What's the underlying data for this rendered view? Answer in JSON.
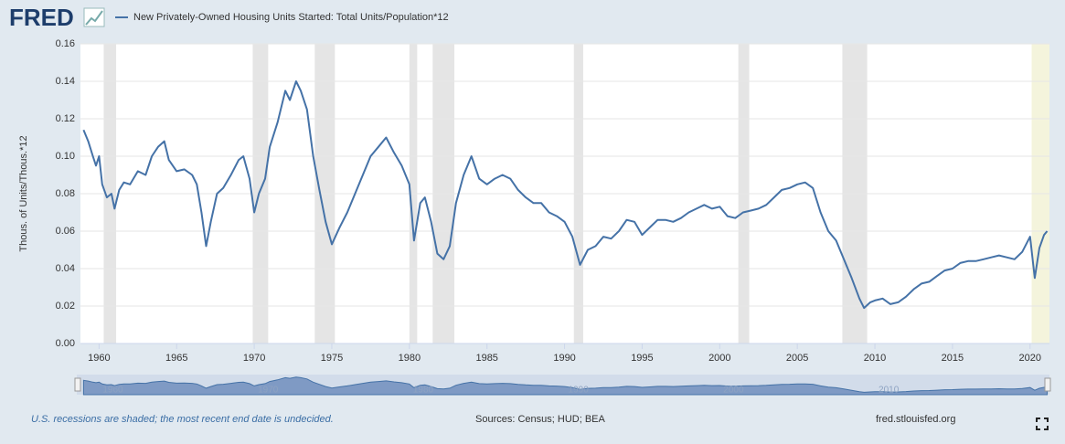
{
  "chart_data": {
    "type": "line",
    "logo": "FRED",
    "ylabel": "Thous. of Units/Thous.*12",
    "footnote": "U.S. recessions are shaded; the most recent end date is undecided.",
    "sources": "Sources: Census; HUD; BEA",
    "site": "fred.stlouisfed.org",
    "xlim": [
      1958.8,
      2021.25
    ],
    "ylim": [
      0,
      0.16
    ],
    "xticks": [
      1960,
      1965,
      1970,
      1975,
      1980,
      1985,
      1990,
      1995,
      2000,
      2005,
      2010,
      2015,
      2020
    ],
    "yticks": [
      {
        "value": 0,
        "label": "0.00"
      },
      0.02,
      0.04,
      0.06,
      0.08,
      {
        "value": 0.1,
        "label": "0.10"
      },
      0.12,
      0.14,
      0.16
    ],
    "navigator_ticks": [
      1960,
      1970,
      1980,
      1990,
      2000,
      2010
    ],
    "grid": true,
    "recession_color": "#e5e5e5",
    "recessions": [
      [
        1960.3,
        1961.1
      ],
      [
        1969.9,
        1970.9
      ],
      [
        1973.9,
        1975.2
      ],
      [
        1980.0,
        1980.5
      ],
      [
        1981.5,
        1982.9
      ],
      [
        1990.6,
        1991.2
      ],
      [
        2001.2,
        2001.9
      ],
      [
        2007.9,
        2009.5
      ]
    ],
    "open_recession_color": "#f4f4dc",
    "open_recession_start": 2020.1,
    "x": [
      1959.0,
      1959.3,
      1959.6,
      1959.8,
      1960.0,
      1960.2,
      1960.5,
      1960.8,
      1961.0,
      1961.3,
      1961.6,
      1962.0,
      1962.5,
      1963.0,
      1963.4,
      1963.8,
      1964.2,
      1964.5,
      1965.0,
      1965.5,
      1966.0,
      1966.3,
      1966.6,
      1966.9,
      1967.2,
      1967.6,
      1968.0,
      1968.5,
      1969.0,
      1969.3,
      1969.7,
      1970.0,
      1970.3,
      1970.7,
      1971.0,
      1971.5,
      1972.0,
      1972.3,
      1972.7,
      1973.0,
      1973.4,
      1973.8,
      1974.2,
      1974.6,
      1975.0,
      1975.5,
      1976.0,
      1976.5,
      1977.0,
      1977.5,
      1978.0,
      1978.5,
      1979.0,
      1979.5,
      1980.0,
      1980.3,
      1980.7,
      1981.0,
      1981.4,
      1981.8,
      1982.2,
      1982.6,
      1983.0,
      1983.5,
      1984.0,
      1984.5,
      1985.0,
      1985.5,
      1986.0,
      1986.5,
      1987.0,
      1987.5,
      1988.0,
      1988.5,
      1989.0,
      1989.5,
      1990.0,
      1990.5,
      1991.0,
      1991.5,
      1992.0,
      1992.5,
      1993.0,
      1993.5,
      1994.0,
      1994.5,
      1995.0,
      1995.5,
      1996.0,
      1996.5,
      1997.0,
      1997.5,
      1998.0,
      1998.5,
      1999.0,
      1999.5,
      2000.0,
      2000.5,
      2001.0,
      2001.5,
      2002.0,
      2002.5,
      2003.0,
      2003.5,
      2004.0,
      2004.5,
      2005.0,
      2005.5,
      2006.0,
      2006.5,
      2007.0,
      2007.5,
      2008.0,
      2008.5,
      2009.0,
      2009.3,
      2009.7,
      2010.0,
      2010.5,
      2011.0,
      2011.5,
      2012.0,
      2012.5,
      2013.0,
      2013.5,
      2014.0,
      2014.5,
      2015.0,
      2015.5,
      2016.0,
      2016.5,
      2017.0,
      2017.5,
      2018.0,
      2018.5,
      2019.0,
      2019.5,
      2020.0,
      2020.3,
      2020.6,
      2020.9,
      2021.1
    ],
    "series": [
      {
        "name": "New Privately-Owned Housing Units Started: Total Units/Population*12",
        "color": "#4572a7",
        "values": [
          0.114,
          0.108,
          0.1,
          0.095,
          0.1,
          0.085,
          0.078,
          0.08,
          0.072,
          0.082,
          0.086,
          0.085,
          0.092,
          0.09,
          0.1,
          0.105,
          0.108,
          0.098,
          0.092,
          0.093,
          0.09,
          0.085,
          0.07,
          0.052,
          0.065,
          0.08,
          0.083,
          0.09,
          0.098,
          0.1,
          0.088,
          0.07,
          0.08,
          0.088,
          0.105,
          0.118,
          0.135,
          0.13,
          0.14,
          0.135,
          0.125,
          0.1,
          0.082,
          0.065,
          0.053,
          0.062,
          0.07,
          0.08,
          0.09,
          0.1,
          0.105,
          0.11,
          0.102,
          0.095,
          0.085,
          0.055,
          0.075,
          0.078,
          0.065,
          0.048,
          0.045,
          0.052,
          0.075,
          0.09,
          0.1,
          0.088,
          0.085,
          0.088,
          0.09,
          0.088,
          0.082,
          0.078,
          0.075,
          0.075,
          0.07,
          0.068,
          0.065,
          0.057,
          0.042,
          0.05,
          0.052,
          0.057,
          0.056,
          0.06,
          0.066,
          0.065,
          0.058,
          0.062,
          0.066,
          0.066,
          0.065,
          0.067,
          0.07,
          0.072,
          0.074,
          0.072,
          0.073,
          0.068,
          0.067,
          0.07,
          0.071,
          0.072,
          0.074,
          0.078,
          0.082,
          0.083,
          0.085,
          0.086,
          0.083,
          0.07,
          0.06,
          0.055,
          0.045,
          0.035,
          0.024,
          0.019,
          0.022,
          0.023,
          0.024,
          0.021,
          0.022,
          0.025,
          0.029,
          0.032,
          0.033,
          0.036,
          0.039,
          0.04,
          0.043,
          0.044,
          0.044,
          0.045,
          0.046,
          0.047,
          0.046,
          0.045,
          0.049,
          0.057,
          0.035,
          0.051,
          0.058,
          0.06
        ]
      }
    ]
  }
}
